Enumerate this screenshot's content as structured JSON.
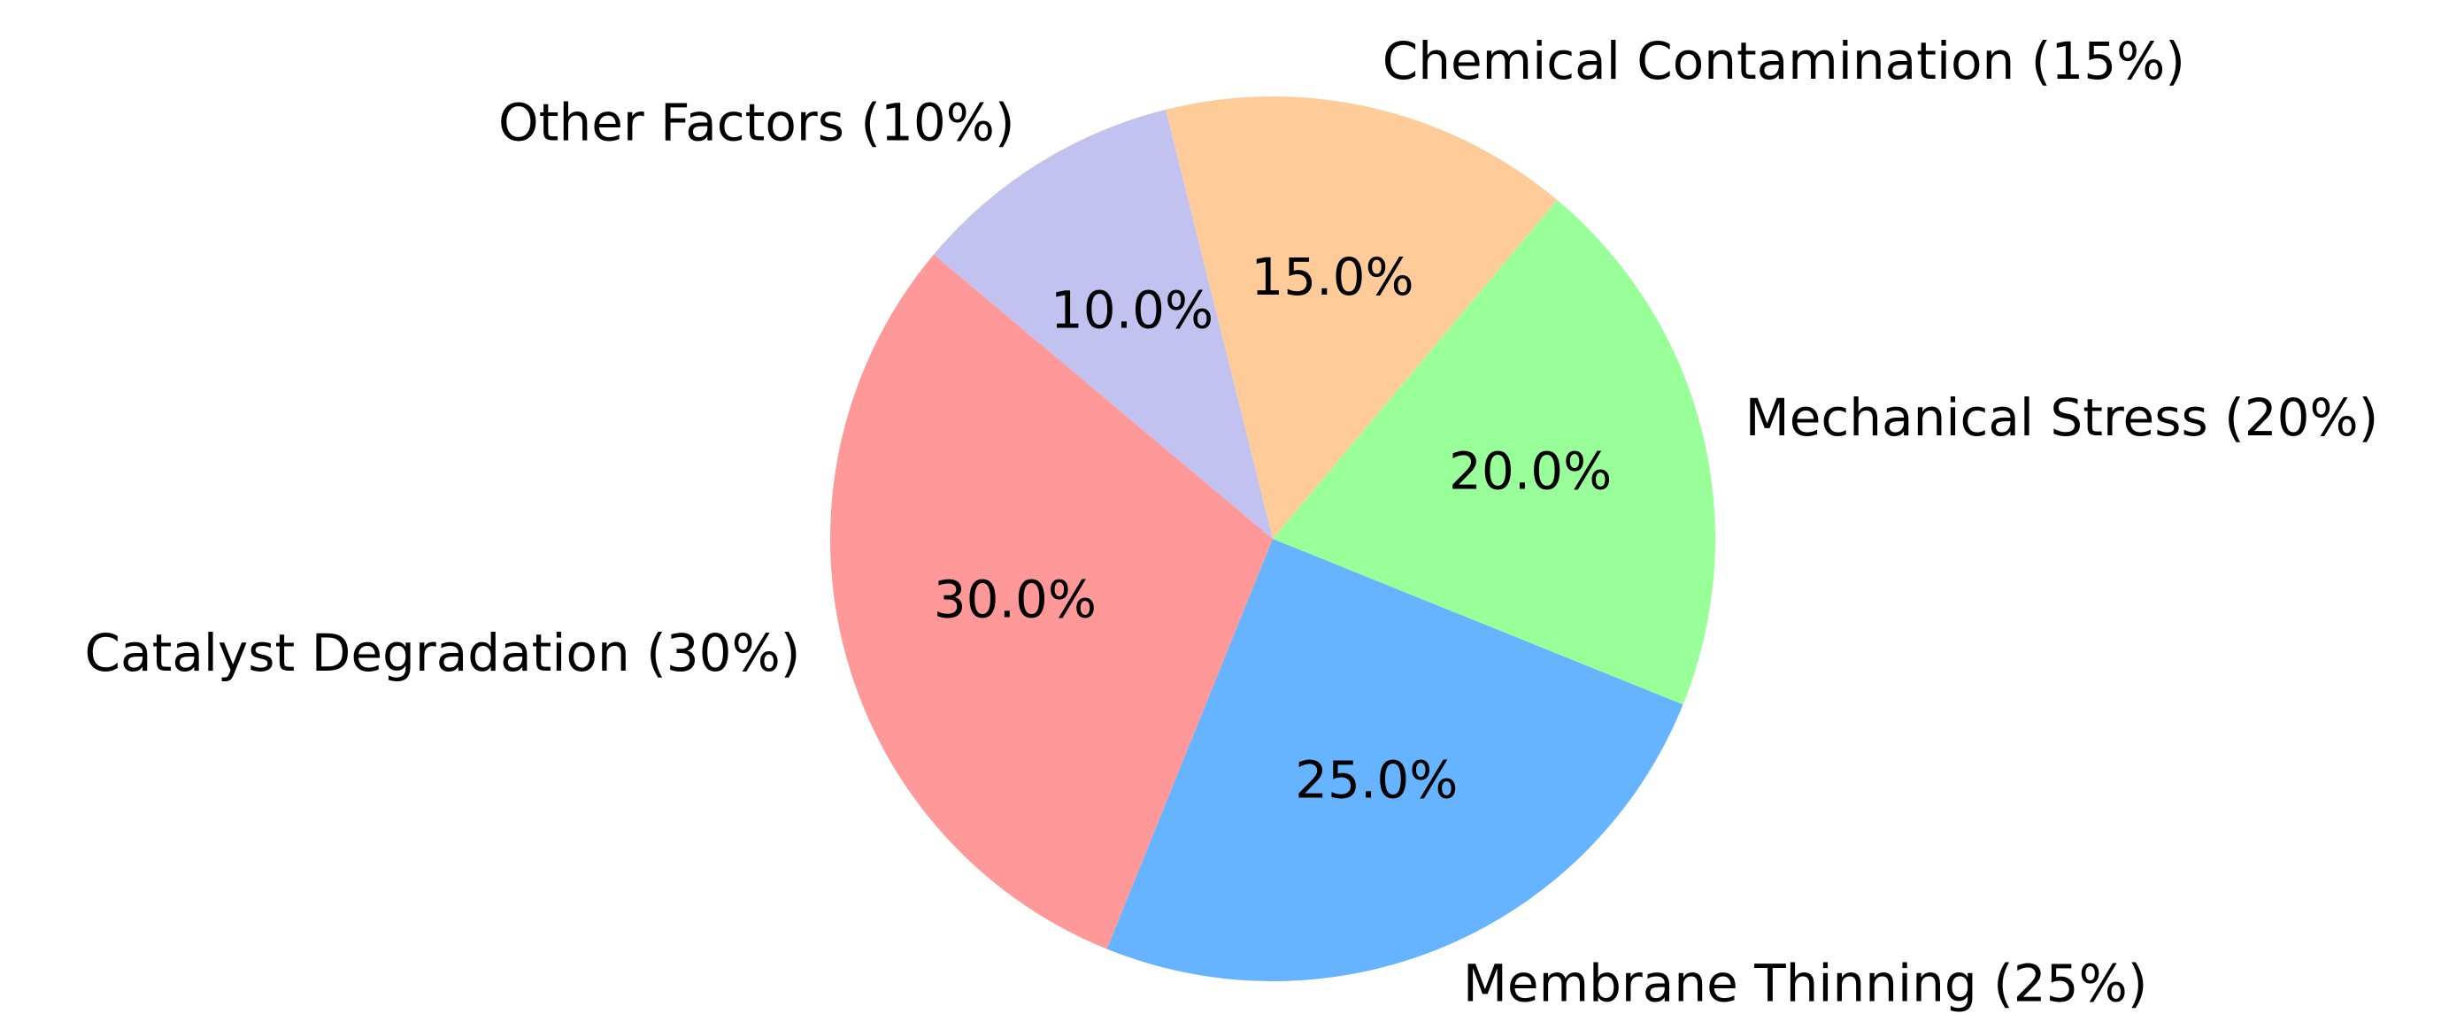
{
  "chart_data": {
    "type": "pie",
    "categories": [
      "Catalyst Degradation (30%)",
      "Membrane Thinning (25%)",
      "Mechanical Stress (20%)",
      "Chemical Contamination (15%)",
      "Other Factors (10%)"
    ],
    "values": [
      30,
      25,
      20,
      15,
      10
    ],
    "value_labels": [
      "30.0%",
      "25.0%",
      "20.0%",
      "15.0%",
      "10.0%"
    ],
    "colors": [
      "#ff9999",
      "#66b3ff",
      "#99ff99",
      "#ffcc99",
      "#c2c2f0"
    ]
  }
}
